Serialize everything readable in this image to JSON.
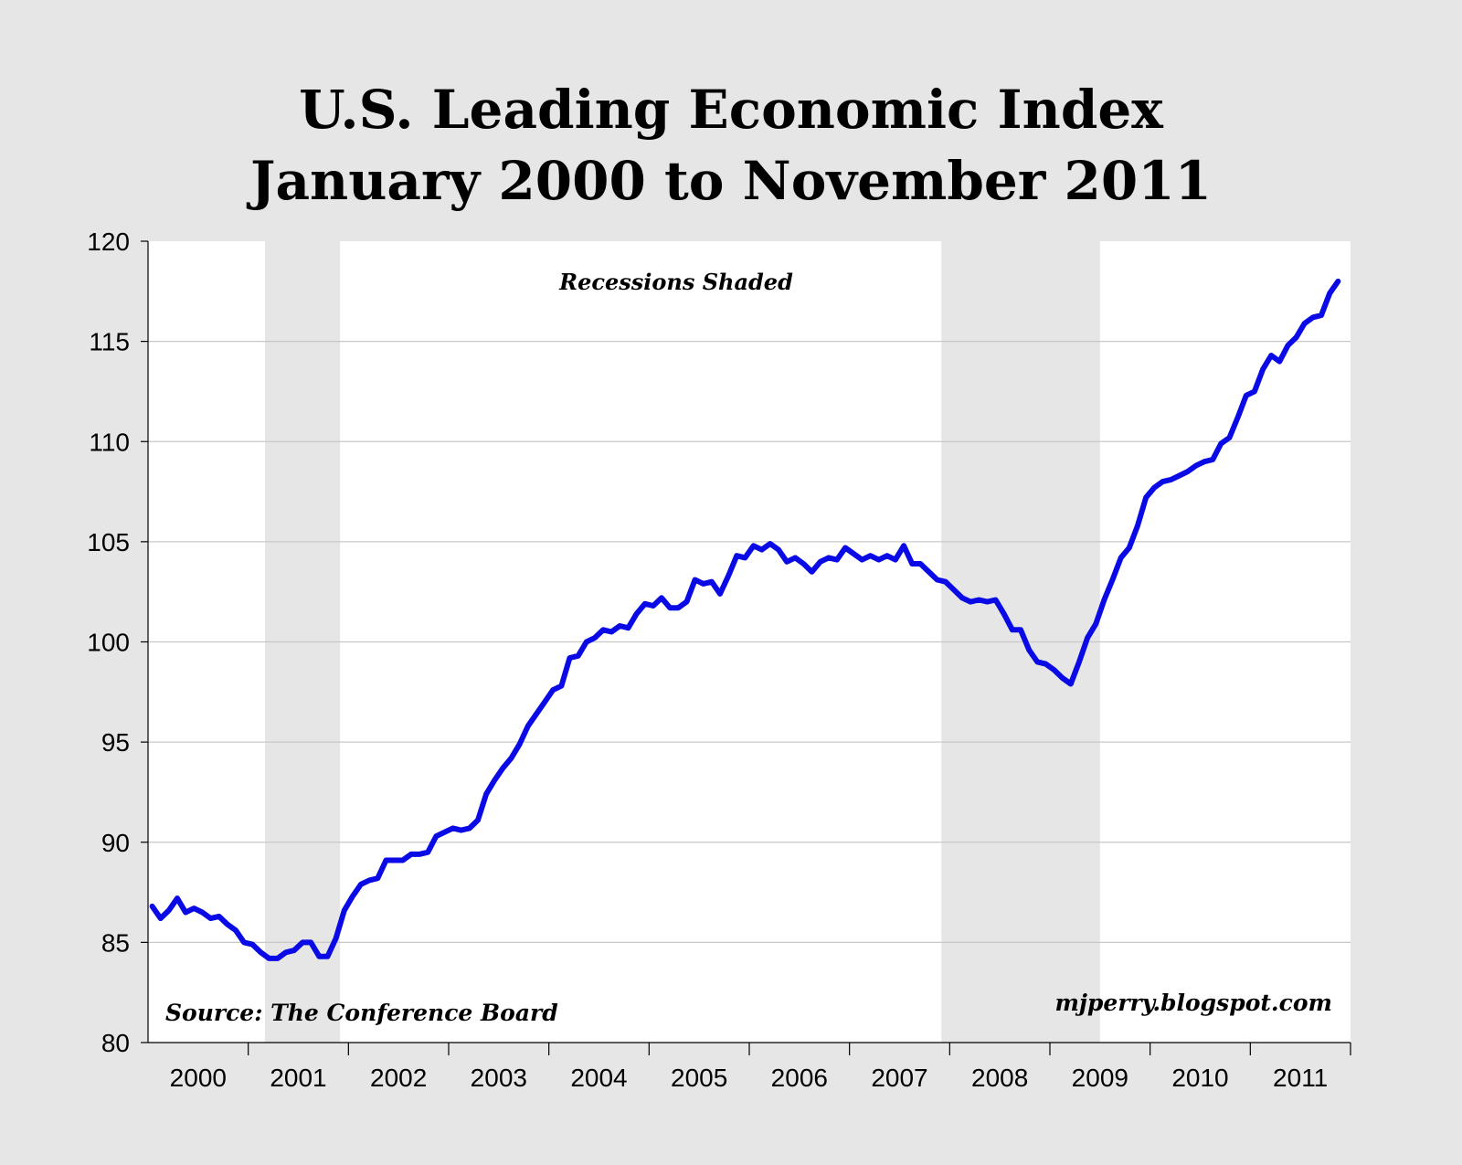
{
  "chart_data": {
    "type": "line",
    "title_lines": [
      "U.S. Leading Economic Index",
      "January 2000 to November 2011"
    ],
    "annotation": "Recessions Shaded",
    "source": "Source: The Conference Board",
    "credit": "mjperry.blogspot.com",
    "ylim": [
      80,
      120
    ],
    "y_ticks": [
      80,
      85,
      90,
      95,
      100,
      105,
      110,
      115,
      120
    ],
    "x_ticks": [
      "2000",
      "2001",
      "2002",
      "2003",
      "2004",
      "2005",
      "2006",
      "2007",
      "2008",
      "2009",
      "2010",
      "2011"
    ],
    "x_range": [
      "2000-01",
      "2011-12"
    ],
    "grid": "horizontal",
    "recessions": [
      {
        "start": "2001-03",
        "end": "2001-11"
      },
      {
        "start": "2007-12",
        "end": "2009-06"
      }
    ],
    "series": [
      {
        "color": "#0a0ae6",
        "x": [
          "2000-01",
          "2000-02",
          "2000-03",
          "2000-04",
          "2000-05",
          "2000-06",
          "2000-07",
          "2000-08",
          "2000-09",
          "2000-10",
          "2000-11",
          "2000-12",
          "2001-01",
          "2001-02",
          "2001-03",
          "2001-04",
          "2001-05",
          "2001-06",
          "2001-07",
          "2001-08",
          "2001-09",
          "2001-10",
          "2001-11",
          "2001-12",
          "2002-01",
          "2002-02",
          "2002-03",
          "2002-04",
          "2002-05",
          "2002-06",
          "2002-07",
          "2002-08",
          "2002-09",
          "2002-10",
          "2002-11",
          "2002-12",
          "2003-01",
          "2003-02",
          "2003-03",
          "2003-04",
          "2003-05",
          "2003-06",
          "2003-07",
          "2003-08",
          "2003-09",
          "2003-10",
          "2003-11",
          "2003-12",
          "2004-01",
          "2004-02",
          "2004-03",
          "2004-04",
          "2004-05",
          "2004-06",
          "2004-07",
          "2004-08",
          "2004-09",
          "2004-10",
          "2004-11",
          "2004-12",
          "2005-01",
          "2005-02",
          "2005-03",
          "2005-04",
          "2005-05",
          "2005-06",
          "2005-07",
          "2005-08",
          "2005-09",
          "2005-10",
          "2005-11",
          "2005-12",
          "2006-01",
          "2006-02",
          "2006-03",
          "2006-04",
          "2006-05",
          "2006-06",
          "2006-07",
          "2006-08",
          "2006-09",
          "2006-10",
          "2006-11",
          "2006-12",
          "2007-01",
          "2007-02",
          "2007-03",
          "2007-04",
          "2007-05",
          "2007-06",
          "2007-07",
          "2007-08",
          "2007-09",
          "2007-10",
          "2007-11",
          "2007-12",
          "2008-01",
          "2008-02",
          "2008-03",
          "2008-04",
          "2008-05",
          "2008-06",
          "2008-07",
          "2008-08",
          "2008-09",
          "2008-10",
          "2008-11",
          "2008-12",
          "2009-01",
          "2009-02",
          "2009-03",
          "2009-04",
          "2009-05",
          "2009-06",
          "2009-07",
          "2009-08",
          "2009-09",
          "2009-10",
          "2009-11",
          "2009-12",
          "2010-01",
          "2010-02",
          "2010-03",
          "2010-04",
          "2010-05",
          "2010-06",
          "2010-07",
          "2010-08",
          "2010-09",
          "2010-10",
          "2010-11",
          "2010-12",
          "2011-01",
          "2011-02",
          "2011-03",
          "2011-04",
          "2011-05",
          "2011-06",
          "2011-07",
          "2011-08",
          "2011-09",
          "2011-10",
          "2011-11"
        ],
        "values": [
          86.8,
          86.2,
          86.6,
          87.2,
          86.5,
          86.7,
          86.5,
          86.2,
          86.3,
          85.9,
          85.6,
          85.0,
          84.9,
          84.5,
          84.2,
          84.2,
          84.5,
          84.6,
          85.0,
          85.0,
          84.3,
          84.3,
          85.2,
          86.6,
          87.3,
          87.9,
          88.1,
          88.2,
          89.1,
          89.1,
          89.1,
          89.4,
          89.4,
          89.5,
          90.3,
          90.5,
          90.7,
          90.6,
          90.7,
          91.1,
          92.4,
          93.1,
          93.7,
          94.2,
          94.9,
          95.8,
          96.4,
          97.0,
          97.6,
          97.8,
          99.2,
          99.3,
          100.0,
          100.2,
          100.6,
          100.5,
          100.8,
          100.7,
          101.4,
          101.9,
          101.8,
          102.2,
          101.7,
          101.7,
          102.0,
          103.1,
          102.9,
          103.0,
          102.4,
          103.3,
          104.3,
          104.2,
          104.8,
          104.6,
          104.9,
          104.6,
          104.0,
          104.2,
          103.9,
          103.5,
          104.0,
          104.2,
          104.1,
          104.7,
          104.4,
          104.1,
          104.3,
          104.1,
          104.3,
          104.1,
          104.8,
          103.9,
          103.9,
          103.5,
          103.1,
          103.0,
          102.6,
          102.2,
          102.0,
          102.1,
          102.0,
          102.1,
          101.4,
          100.6,
          100.6,
          99.6,
          99.0,
          98.9,
          98.6,
          98.2,
          97.9,
          99.0,
          100.2,
          100.9,
          102.1,
          103.1,
          104.2,
          104.7,
          105.8,
          107.2,
          107.7,
          108.0,
          108.1,
          108.3,
          108.5,
          108.8,
          109.0,
          109.1,
          109.9,
          110.2,
          111.2,
          112.3,
          112.5,
          113.6,
          114.3,
          114.0,
          114.8,
          115.2,
          115.9,
          116.2,
          116.3,
          117.4,
          118.0
        ]
      }
    ]
  }
}
